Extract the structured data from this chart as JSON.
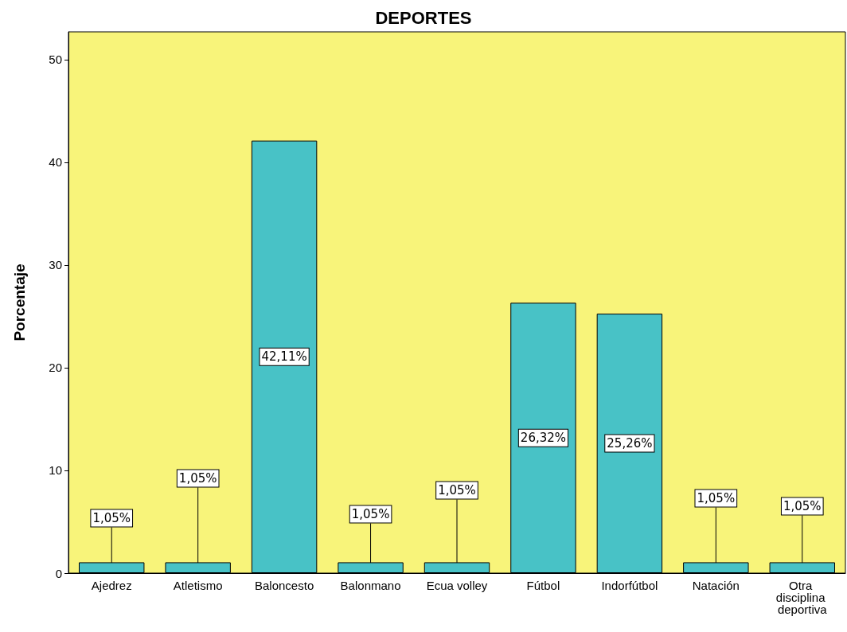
{
  "chart_data": {
    "type": "bar",
    "title": "DEPORTES",
    "ylabel": "Porcentaje",
    "categories": [
      "Ajedrez",
      "Atletismo",
      "Baloncesto",
      "Balonmano",
      "Ecua volley",
      "Fútbol",
      "Indorfútbol",
      "Natación",
      "Otra disciplina deportiva"
    ],
    "values": [
      1.05,
      1.05,
      42.11,
      1.05,
      1.05,
      26.32,
      25.26,
      1.05,
      1.05
    ],
    "value_labels": [
      "1,05%",
      "1,05%",
      "42,11%",
      "1,05%",
      "1,05%",
      "26,32%",
      "25,26%",
      "1,05%",
      "1,05%"
    ],
    "color": "#48c2c6",
    "ylim": [
      0,
      52.7
    ],
    "yticks": [
      0,
      10,
      20,
      30,
      40,
      50
    ]
  }
}
